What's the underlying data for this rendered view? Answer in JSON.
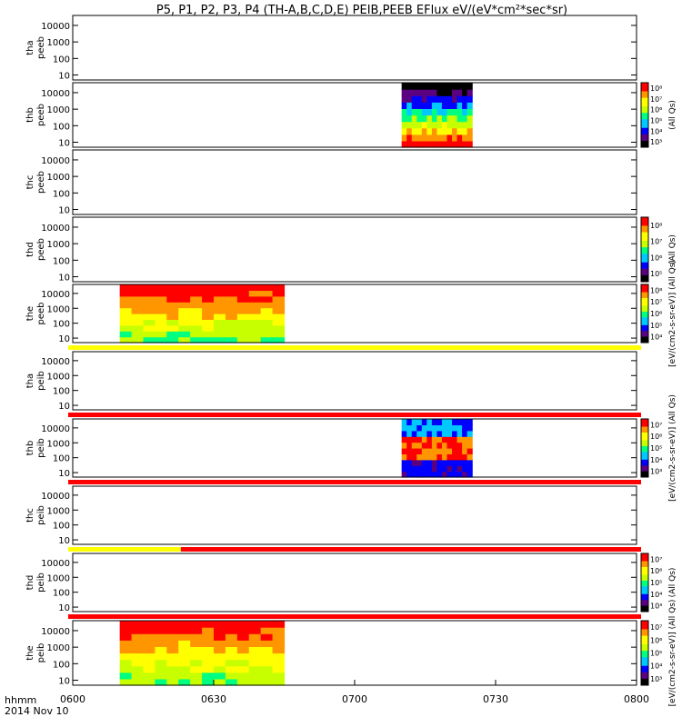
{
  "title": "P5, P1, P2, P3, P4 (TH-A,B,C,D,E) PEIB,PEEB EFlux eV/(eV*cm²*sec*sr)",
  "x_axis": {
    "label_line1": "hhmm",
    "label_line2": "2014 Nov 10",
    "ticks": [
      "0600",
      "0630",
      "0700",
      "0730",
      "0800"
    ]
  },
  "colors": {
    "flag_yellow": "#ffff00",
    "flag_red": "#ff0000",
    "spectrogram_scale": [
      "#000000",
      "#5a0080",
      "#0000ff",
      "#00c8ff",
      "#00ff80",
      "#c8ff00",
      "#ffff00",
      "#ff9600",
      "#ff0000"
    ]
  },
  "chart_data": [
    {
      "type": "heatmap",
      "panel": "tha peeb",
      "ylabel": [
        "tha",
        "peeb"
      ],
      "yticks": [
        "10",
        "100",
        "1000",
        "10000"
      ],
      "yscale": "log",
      "ylim": [
        5,
        40000
      ],
      "colorbar": null,
      "data_interval_hhmm": null,
      "flag_bar": null
    },
    {
      "type": "heatmap",
      "panel": "thb peeb",
      "ylabel": [
        "thb",
        "peeb"
      ],
      "yticks": [
        "10",
        "100",
        "1000",
        "10000"
      ],
      "yscale": "log",
      "ylim": [
        5,
        40000
      ],
      "colorbar": {
        "ticks": [
          "10³",
          "10⁴",
          "10⁵",
          "10⁶",
          "10⁷",
          "10⁸"
        ],
        "label": "(All Qs)"
      },
      "data_interval_hhmm": [
        "0710",
        "0725"
      ],
      "flag_bar": null
    },
    {
      "type": "heatmap",
      "panel": "thc peeb",
      "ylabel": [
        "thc",
        "peeb"
      ],
      "yticks": [
        "10",
        "100",
        "1000",
        "10000"
      ],
      "yscale": "log",
      "ylim": [
        5,
        40000
      ],
      "colorbar": null,
      "data_interval_hhmm": null,
      "flag_bar": null
    },
    {
      "type": "heatmap",
      "panel": "thd peeb",
      "ylabel": [
        "thd",
        "peeb"
      ],
      "yticks": [
        "10",
        "100",
        "1000",
        "10000"
      ],
      "yscale": "log",
      "ylim": [
        5,
        40000
      ],
      "colorbar": {
        "ticks": [
          "10⁵",
          "10⁶",
          "10⁷",
          "10⁸"
        ],
        "label": "(All Qs)"
      },
      "data_interval_hhmm": null,
      "flag_bar": null
    },
    {
      "type": "heatmap",
      "panel": "the peeb",
      "ylabel": [
        "the",
        "peeb"
      ],
      "yticks": [
        "10",
        "100",
        "1000",
        "10000"
      ],
      "yscale": "log",
      "ylim": [
        5,
        40000
      ],
      "colorbar": {
        "ticks": [
          "10⁴",
          "10⁵",
          "10⁶",
          "10⁷",
          "10⁸"
        ],
        "label": "[eV/(cm2-s-sr-eV)] (All Qs)"
      },
      "data_interval_hhmm": [
        "0610",
        "0645"
      ],
      "flag_bar": "yellow"
    },
    {
      "type": "heatmap",
      "panel": "tha peib",
      "ylabel": [
        "tha",
        "peib"
      ],
      "yticks": [
        "10",
        "100",
        "1000",
        "10000"
      ],
      "yscale": "log",
      "ylim": [
        5,
        40000
      ],
      "colorbar": null,
      "data_interval_hhmm": null,
      "flag_bar": "red"
    },
    {
      "type": "heatmap",
      "panel": "thb peib",
      "ylabel": [
        "thb",
        "peib"
      ],
      "yticks": [
        "10",
        "100",
        "1000",
        "10000"
      ],
      "yscale": "log",
      "ylim": [
        5,
        40000
      ],
      "colorbar": {
        "ticks": [
          "10³",
          "10⁴",
          "10⁵",
          "10⁶",
          "10⁷"
        ],
        "label": "[eV/(cm2-s-sr-eV)] (All Qs)"
      },
      "data_interval_hhmm": [
        "0710",
        "0725"
      ],
      "flag_bar": "red"
    },
    {
      "type": "heatmap",
      "panel": "thc peib",
      "ylabel": [
        "thc",
        "peib"
      ],
      "yticks": [
        "10",
        "100",
        "1000",
        "10000"
      ],
      "yscale": "log",
      "ylim": [
        5,
        40000
      ],
      "colorbar": null,
      "data_interval_hhmm": null,
      "flag_bar": "yellow-red",
      "flag_switch_hhmm": "0623"
    },
    {
      "type": "heatmap",
      "panel": "thd peib",
      "ylabel": [
        "thd",
        "peib"
      ],
      "yticks": [
        "10",
        "100",
        "1000",
        "10000"
      ],
      "yscale": "log",
      "ylim": [
        5,
        40000
      ],
      "colorbar": {
        "ticks": [
          "10³",
          "10⁴",
          "10⁵",
          "10⁶",
          "10⁷"
        ],
        "label": "(All Qs)"
      },
      "data_interval_hhmm": null,
      "flag_bar": "red"
    },
    {
      "type": "heatmap",
      "panel": "the peib",
      "ylabel": [
        "the",
        "peib"
      ],
      "yticks": [
        "10",
        "100",
        "1000",
        "10000"
      ],
      "yscale": "log",
      "ylim": [
        5,
        40000
      ],
      "colorbar": {
        "ticks": [
          "10³",
          "10⁴",
          "10⁵",
          "10⁶",
          "10⁷"
        ],
        "label": "[eV/(cm2-s-sr-eV)] (All Qs)"
      },
      "data_interval_hhmm": [
        "0610",
        "0645"
      ],
      "flag_bar": null
    }
  ]
}
